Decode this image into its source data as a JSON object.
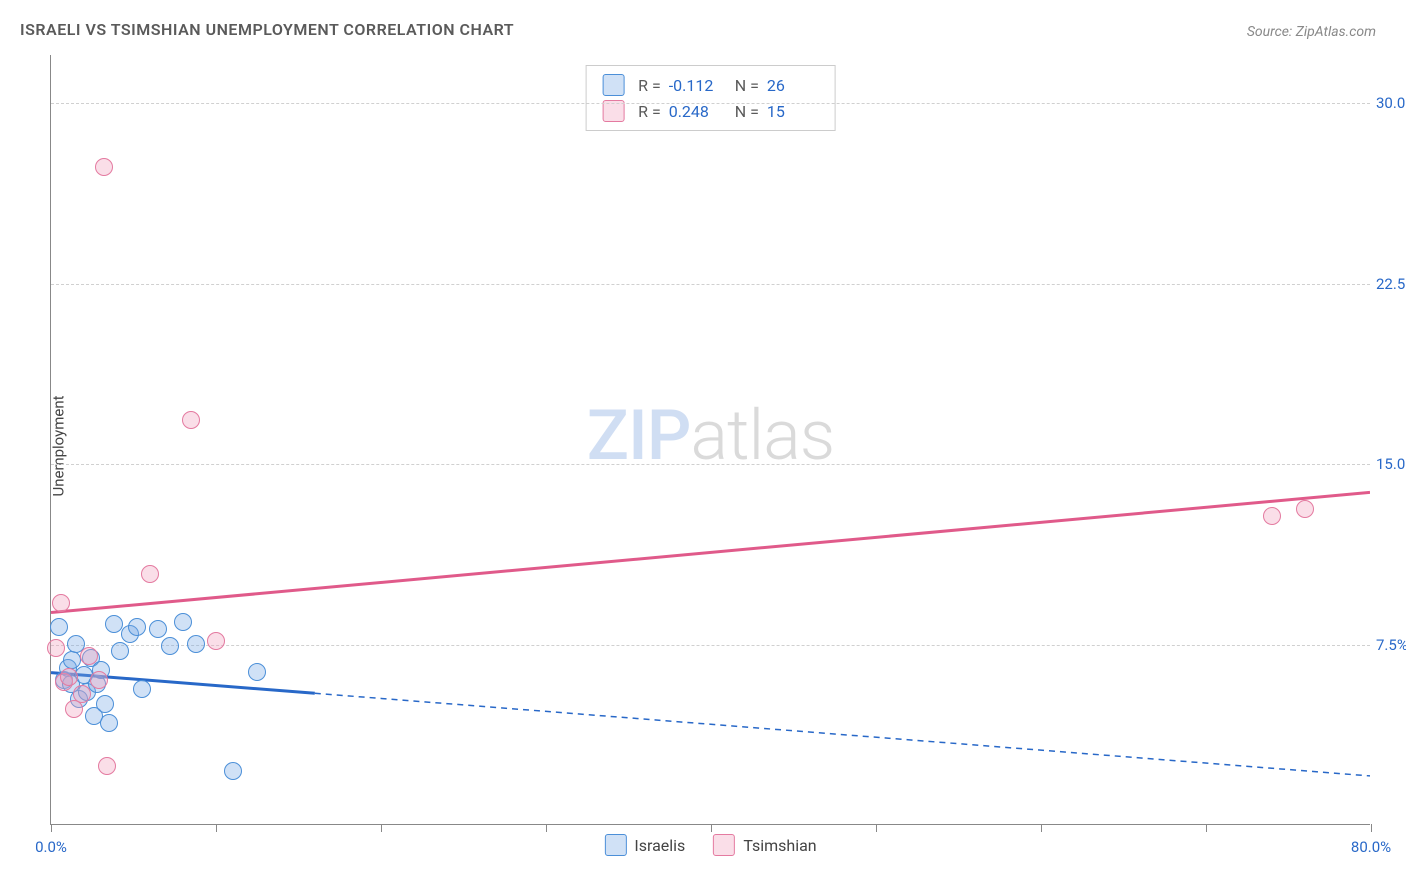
{
  "title": "ISRAELI VS TSIMSHIAN UNEMPLOYMENT CORRELATION CHART",
  "source_prefix": "Source: ",
  "source_name": "ZipAtlas.com",
  "ylabel": "Unemployment",
  "watermark_zip": "ZIP",
  "watermark_atlas": "atlas",
  "chart": {
    "type": "scatter",
    "background_color": "#ffffff",
    "grid_color": "#d0d0d0",
    "axis_color": "#888888",
    "label_color": "#2868c8",
    "title_color": "#5a5a5a",
    "title_fontsize": 16,
    "label_fontsize": 15,
    "xlim": [
      0,
      80
    ],
    "ylim": [
      0,
      32
    ],
    "xticks": [
      0,
      10,
      20,
      30,
      40,
      50,
      60,
      70,
      80
    ],
    "xtick_labels": {
      "0": "0.0%",
      "80": "80.0%"
    },
    "yticks": [
      7.5,
      15.0,
      22.5,
      30.0
    ],
    "ytick_labels": [
      "7.5%",
      "15.0%",
      "22.5%",
      "30.0%"
    ],
    "point_radius": 9,
    "point_stroke_width": 1.5,
    "trend_stroke_width": 3
  },
  "series": [
    {
      "name": "Israelis",
      "key": "israelis",
      "color_fill": "rgba(120,170,230,0.35)",
      "color_stroke": "#4b8fd8",
      "trend_color": "#2868c8",
      "R": "-0.112",
      "N": "26",
      "trend": {
        "x1": 0,
        "y1": 6.3,
        "x2": 80,
        "y2": 2.0,
        "solid_until_x": 16
      },
      "points": [
        {
          "x": 0.5,
          "y": 8.2
        },
        {
          "x": 0.8,
          "y": 6.0
        },
        {
          "x": 1.0,
          "y": 6.5
        },
        {
          "x": 1.2,
          "y": 5.8
        },
        {
          "x": 1.3,
          "y": 6.8
        },
        {
          "x": 1.5,
          "y": 7.5
        },
        {
          "x": 1.7,
          "y": 5.2
        },
        {
          "x": 2.0,
          "y": 6.2
        },
        {
          "x": 2.2,
          "y": 5.5
        },
        {
          "x": 2.4,
          "y": 6.9
        },
        {
          "x": 2.6,
          "y": 4.5
        },
        {
          "x": 2.8,
          "y": 5.8
        },
        {
          "x": 3.0,
          "y": 6.4
        },
        {
          "x": 3.3,
          "y": 5.0
        },
        {
          "x": 3.5,
          "y": 4.2
        },
        {
          "x": 3.8,
          "y": 8.3
        },
        {
          "x": 4.2,
          "y": 7.2
        },
        {
          "x": 4.8,
          "y": 7.9
        },
        {
          "x": 5.2,
          "y": 8.2
        },
        {
          "x": 5.5,
          "y": 5.6
        },
        {
          "x": 6.5,
          "y": 8.1
        },
        {
          "x": 7.2,
          "y": 7.4
        },
        {
          "x": 8.0,
          "y": 8.4
        },
        {
          "x": 8.8,
          "y": 7.5
        },
        {
          "x": 11.0,
          "y": 2.2
        },
        {
          "x": 12.5,
          "y": 6.3
        }
      ]
    },
    {
      "name": "Tsimshian",
      "key": "tsimshian",
      "color_fill": "rgba(240,160,190,0.35)",
      "color_stroke": "#e47aa0",
      "trend_color": "#e05a8a",
      "R": "0.248",
      "N": "15",
      "trend": {
        "x1": 0,
        "y1": 8.8,
        "x2": 80,
        "y2": 13.8,
        "solid_until_x": 80
      },
      "points": [
        {
          "x": 0.3,
          "y": 7.3
        },
        {
          "x": 0.6,
          "y": 9.2
        },
        {
          "x": 0.8,
          "y": 5.9
        },
        {
          "x": 1.1,
          "y": 6.1
        },
        {
          "x": 1.4,
          "y": 4.8
        },
        {
          "x": 1.9,
          "y": 5.4
        },
        {
          "x": 2.3,
          "y": 7.0
        },
        {
          "x": 2.9,
          "y": 6.0
        },
        {
          "x": 3.2,
          "y": 27.3
        },
        {
          "x": 3.4,
          "y": 2.4
        },
        {
          "x": 6.0,
          "y": 10.4
        },
        {
          "x": 8.5,
          "y": 16.8
        },
        {
          "x": 10.0,
          "y": 7.6
        },
        {
          "x": 74.0,
          "y": 12.8
        },
        {
          "x": 76.0,
          "y": 13.1
        }
      ]
    }
  ],
  "stats_labels": {
    "R": "R =",
    "N": "N ="
  },
  "legend": {
    "israelis": "Israelis",
    "tsimshian": "Tsimshian"
  }
}
